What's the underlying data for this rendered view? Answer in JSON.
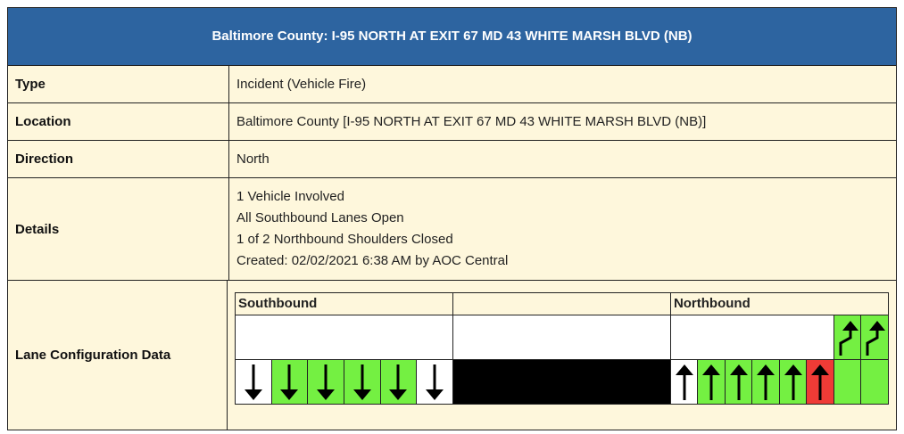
{
  "title": "Baltimore County: I-95 NORTH AT EXIT 67 MD 43 WHITE MARSH BLVD (NB)",
  "rows": {
    "type": {
      "label": "Type",
      "value": "Incident (Vehicle Fire)"
    },
    "location": {
      "label": "Location",
      "value": "Baltimore County [I-95 NORTH AT EXIT 67 MD 43 WHITE MARSH BLVD (NB)]"
    },
    "direction": {
      "label": "Direction",
      "value": "North"
    },
    "details": {
      "label": "Details",
      "lines": [
        "1 Vehicle Involved",
        "All Southbound Lanes Open",
        "1 of 2 Northbound Shoulders Closed",
        "Created: 02/02/2021 6:38 AM by AOC Central"
      ]
    },
    "lanes": {
      "label": "Lane Configuration Data"
    }
  },
  "lane_config": {
    "southbound_label": "Southbound",
    "northbound_label": "Northbound",
    "colors": {
      "open": "#74f042",
      "closed": "#ef3b36",
      "shoulder": "#ffffff",
      "median": "#000000"
    },
    "southbound": [
      {
        "status": "shoulder",
        "arrow": "down"
      },
      {
        "status": "open",
        "arrow": "down"
      },
      {
        "status": "open",
        "arrow": "down"
      },
      {
        "status": "open",
        "arrow": "down"
      },
      {
        "status": "open",
        "arrow": "down"
      },
      {
        "status": "shoulder",
        "arrow": "down"
      }
    ],
    "northbound": [
      {
        "status": "shoulder",
        "arrow": "up"
      },
      {
        "status": "open",
        "arrow": "up"
      },
      {
        "status": "open",
        "arrow": "up"
      },
      {
        "status": "open",
        "arrow": "up"
      },
      {
        "status": "open",
        "arrow": "up"
      },
      {
        "status": "closed",
        "arrow": "up"
      },
      {
        "status": "open",
        "arrow": "none"
      },
      {
        "status": "open",
        "arrow": "none"
      }
    ],
    "northbound_ramps": [
      {
        "status": "open",
        "arrow": "merge-right-up"
      },
      {
        "status": "open",
        "arrow": "merge-right-up"
      }
    ]
  }
}
